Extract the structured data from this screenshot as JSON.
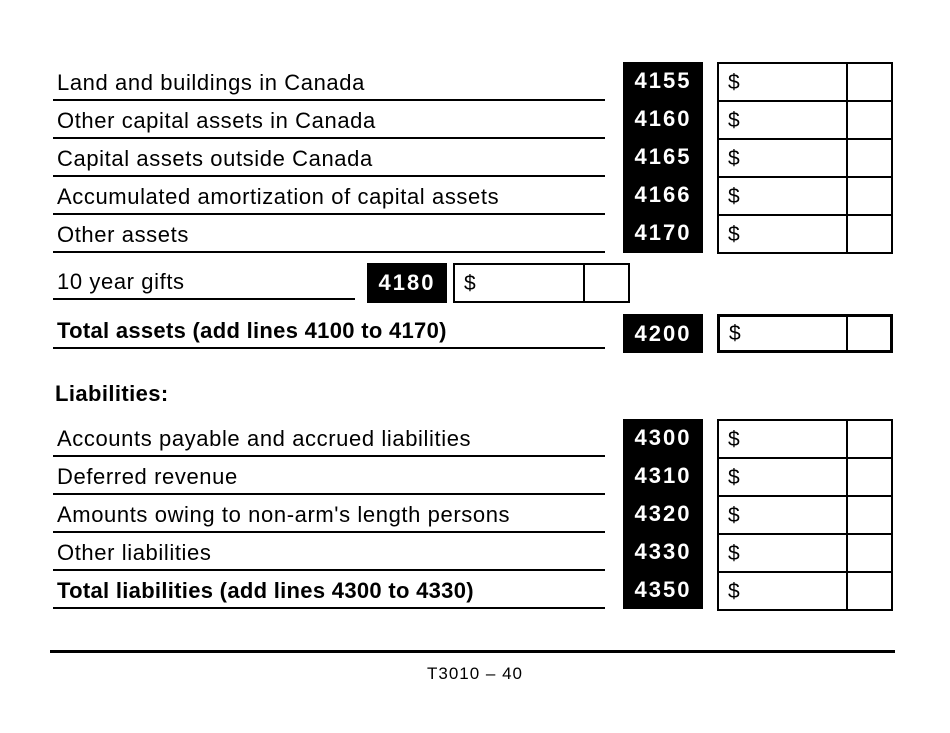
{
  "currency_symbol": "$",
  "colors": {
    "ink": "#000000",
    "paper": "#ffffff"
  },
  "assets": {
    "rows": [
      {
        "label": "Land and buildings in Canada",
        "code": "4155",
        "bold": false
      },
      {
        "label": "Other capital assets in Canada",
        "code": "4160",
        "bold": false
      },
      {
        "label": "Capital assets outside Canada",
        "code": "4165",
        "bold": false
      },
      {
        "label": "Accumulated amortization of capital assets",
        "code": "4166",
        "bold": false
      },
      {
        "label": "Other assets",
        "code": "4170",
        "bold": false
      }
    ],
    "gifts_row": {
      "label": "10 year gifts",
      "code": "4180"
    },
    "total_row": {
      "label": "Total assets (add lines 4100 to 4170)",
      "code": "4200"
    }
  },
  "liabilities": {
    "heading": "Liabilities:",
    "rows": [
      {
        "label": "Accounts payable and accrued liabilities",
        "code": "4300",
        "bold": false
      },
      {
        "label": "Deferred revenue",
        "code": "4310",
        "bold": false
      },
      {
        "label": "Amounts owing to non-arm's length persons",
        "code": "4320",
        "bold": false
      },
      {
        "label": "Other liabilities",
        "code": "4330",
        "bold": false
      },
      {
        "label": "Total liabilities (add lines 4300 to 4330)",
        "code": "4350",
        "bold": true
      }
    ]
  },
  "footer": {
    "page_label": "T3010 – 40"
  }
}
